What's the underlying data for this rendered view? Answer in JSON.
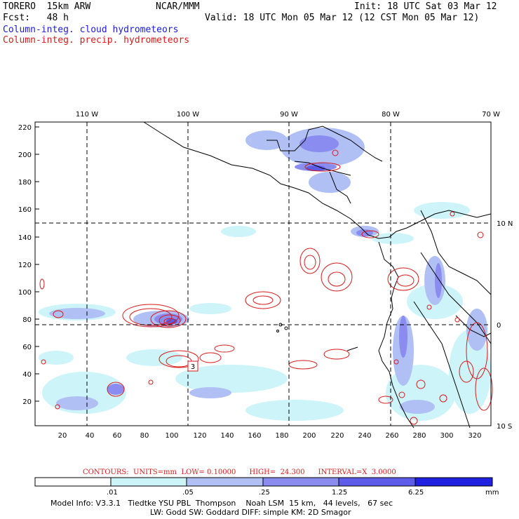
{
  "header": {
    "model": "TORERO  15km ARW",
    "center": "NCAR/MMM",
    "init": "Init: 18 UTC Sat 03 Mar 12",
    "fcst": "Fcst:   48 h",
    "valid": "Valid: 18 UTC Mon 05 Mar 12 (12 CST Mon 05 Mar 12)",
    "field1": "Column-integ. cloud hydrometeors",
    "field2": "Column-integ. precip. hydrometeors",
    "field1_color": "#1a1ad8",
    "field2_color": "#d81a1a"
  },
  "map": {
    "top_lon_labels": [
      "110 W",
      "100 W",
      "90 W",
      "80 W",
      "70 W"
    ],
    "right_lat_labels": [
      "10 N",
      "0",
      "10 S"
    ],
    "y_ticks": [
      "220",
      "200",
      "180",
      "160",
      "140",
      "120",
      "100",
      "80",
      "60",
      "40",
      "20"
    ],
    "x_ticks": [
      "20",
      "40",
      "60",
      "80",
      "100",
      "120",
      "140",
      "160",
      "180",
      "200",
      "220",
      "240",
      "260",
      "280",
      "300",
      "320"
    ],
    "contour_label": "3"
  },
  "contours": {
    "text": "CONTOURS:  UNITS=mm  LOW= 0.10000      HIGH=  24.300      INTERVAL=X  3.0000"
  },
  "colorbar": {
    "labels": [
      ".01",
      ".05",
      ".25",
      "1.25",
      "6.25"
    ],
    "units": "mm",
    "colors": [
      "#ffffff",
      "#cdf4f8",
      "#b0c0f5",
      "#8a8cf0",
      "#5c5ce8",
      "#2020e0"
    ]
  },
  "footer": {
    "line1": "Model Info: V3.3.1   Tiedtke YSU PBL  Thompson    Noah LSM  15 km,   44 levels,   67 sec",
    "line2": "LW: Godd SW: Goddard DIFF: simple KM: 2D Smagor"
  }
}
